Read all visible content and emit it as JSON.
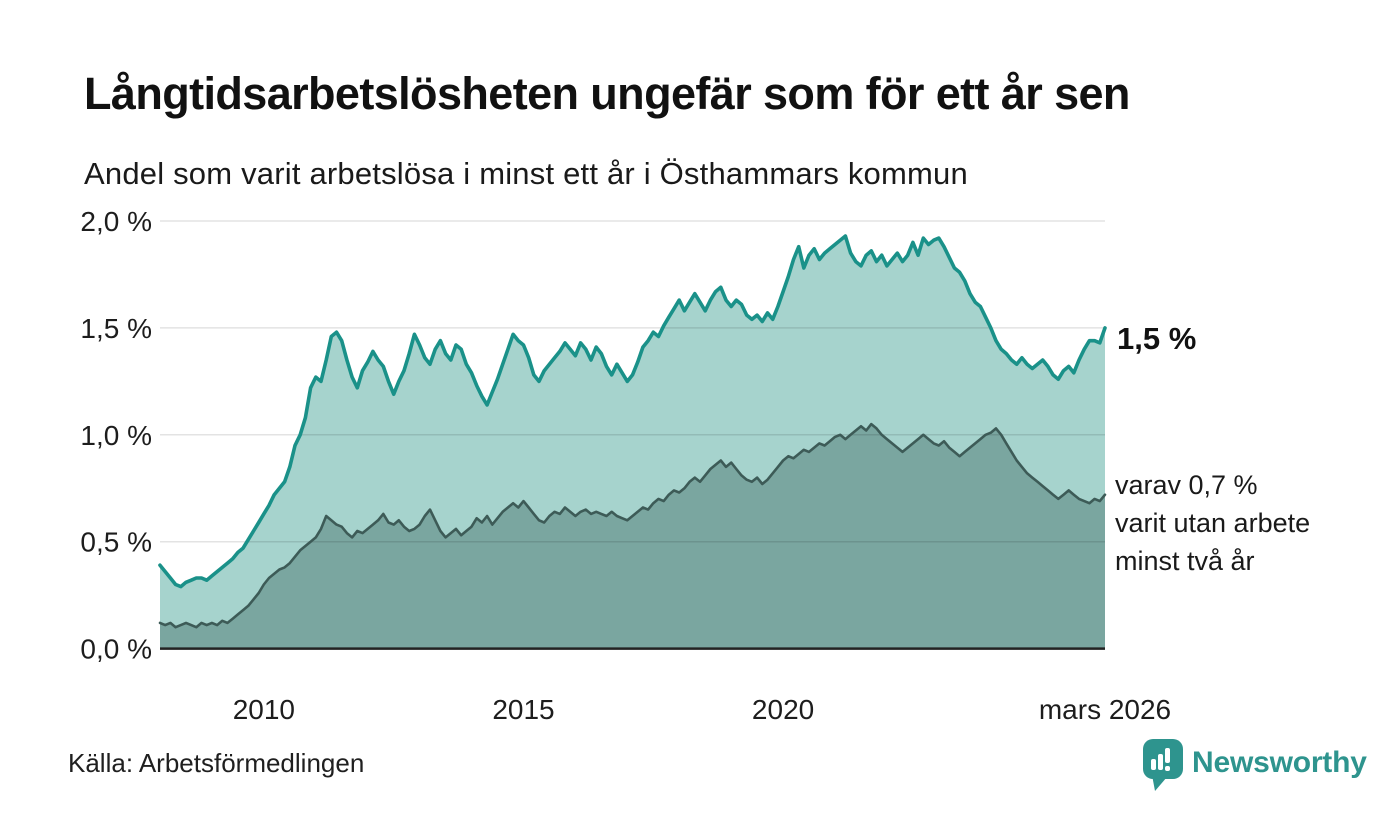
{
  "chart_data": {
    "type": "area",
    "title": "Långtidsarbetslösheten ungefär som för ett år sen",
    "subtitle": "Andel som varit arbetslösa i minst ett år i Östhammars kommun",
    "grid": true,
    "legend_position": "none",
    "grid_color": "rgba(0,0,0,0.11)",
    "axis_color": "#222222",
    "ylim": [
      0,
      2.0
    ],
    "y_axis": {
      "ticks": [
        0,
        0.5,
        1.0,
        1.5,
        2.0
      ],
      "labels": [
        "0,0 %",
        "0,5 %",
        "1,0 %",
        "1,5 %",
        "2,0 %"
      ]
    },
    "x_axis": {
      "start_year": 2008.0,
      "end_year": 2026.2,
      "step_years": 0.1,
      "ticks": [
        {
          "label": "2010",
          "year": 2010
        },
        {
          "label": "2015",
          "year": 2015
        },
        {
          "label": "2020",
          "year": 2020
        },
        {
          "label": "mars 2026",
          "year": 2026.2
        }
      ]
    },
    "series": [
      {
        "name": "arbetslösa i minst ett år",
        "line_color": "#1a9189",
        "fill_color": "#a6d3cd",
        "end_value": 1.5,
        "values": [
          0.39,
          0.36,
          0.33,
          0.3,
          0.29,
          0.31,
          0.32,
          0.33,
          0.33,
          0.32,
          0.34,
          0.36,
          0.38,
          0.4,
          0.42,
          0.45,
          0.47,
          0.51,
          0.55,
          0.59,
          0.63,
          0.67,
          0.72,
          0.75,
          0.78,
          0.85,
          0.95,
          1.0,
          1.08,
          1.22,
          1.27,
          1.25,
          1.35,
          1.46,
          1.48,
          1.44,
          1.35,
          1.27,
          1.22,
          1.3,
          1.34,
          1.39,
          1.35,
          1.32,
          1.25,
          1.19,
          1.25,
          1.3,
          1.38,
          1.47,
          1.42,
          1.36,
          1.33,
          1.4,
          1.44,
          1.38,
          1.35,
          1.42,
          1.4,
          1.33,
          1.29,
          1.23,
          1.18,
          1.14,
          1.2,
          1.26,
          1.33,
          1.4,
          1.47,
          1.44,
          1.42,
          1.36,
          1.28,
          1.25,
          1.3,
          1.33,
          1.36,
          1.39,
          1.43,
          1.4,
          1.37,
          1.43,
          1.4,
          1.35,
          1.41,
          1.38,
          1.32,
          1.28,
          1.33,
          1.29,
          1.25,
          1.28,
          1.34,
          1.41,
          1.44,
          1.48,
          1.46,
          1.51,
          1.55,
          1.59,
          1.63,
          1.58,
          1.62,
          1.66,
          1.62,
          1.58,
          1.63,
          1.67,
          1.69,
          1.63,
          1.6,
          1.63,
          1.61,
          1.56,
          1.54,
          1.56,
          1.53,
          1.57,
          1.54,
          1.6,
          1.67,
          1.74,
          1.82,
          1.88,
          1.78,
          1.84,
          1.87,
          1.82,
          1.85,
          1.87,
          1.89,
          1.91,
          1.93,
          1.85,
          1.81,
          1.79,
          1.84,
          1.86,
          1.81,
          1.84,
          1.79,
          1.82,
          1.85,
          1.81,
          1.84,
          1.9,
          1.84,
          1.92,
          1.89,
          1.91,
          1.92,
          1.88,
          1.83,
          1.78,
          1.76,
          1.72,
          1.66,
          1.62,
          1.6,
          1.55,
          1.5,
          1.44,
          1.4,
          1.38,
          1.35,
          1.33,
          1.36,
          1.33,
          1.31,
          1.33,
          1.35,
          1.32,
          1.28,
          1.26,
          1.3,
          1.32,
          1.29,
          1.35,
          1.4,
          1.44,
          1.44,
          1.43,
          1.5
        ]
      },
      {
        "name": "varit utan arbete minst två år",
        "line_color": "#3d5b57",
        "fill_color": "#7aa6a0",
        "end_value": 0.7,
        "values": [
          0.12,
          0.11,
          0.12,
          0.1,
          0.11,
          0.12,
          0.11,
          0.1,
          0.12,
          0.11,
          0.12,
          0.11,
          0.13,
          0.12,
          0.14,
          0.16,
          0.18,
          0.2,
          0.23,
          0.26,
          0.3,
          0.33,
          0.35,
          0.37,
          0.38,
          0.4,
          0.43,
          0.46,
          0.48,
          0.5,
          0.52,
          0.56,
          0.62,
          0.6,
          0.58,
          0.57,
          0.54,
          0.52,
          0.55,
          0.54,
          0.56,
          0.58,
          0.6,
          0.63,
          0.59,
          0.58,
          0.6,
          0.57,
          0.55,
          0.56,
          0.58,
          0.62,
          0.65,
          0.6,
          0.55,
          0.52,
          0.54,
          0.56,
          0.53,
          0.55,
          0.57,
          0.61,
          0.59,
          0.62,
          0.58,
          0.61,
          0.64,
          0.66,
          0.68,
          0.66,
          0.69,
          0.66,
          0.63,
          0.6,
          0.59,
          0.62,
          0.64,
          0.63,
          0.66,
          0.64,
          0.62,
          0.64,
          0.65,
          0.63,
          0.64,
          0.63,
          0.62,
          0.64,
          0.62,
          0.61,
          0.6,
          0.62,
          0.64,
          0.66,
          0.65,
          0.68,
          0.7,
          0.69,
          0.72,
          0.74,
          0.73,
          0.75,
          0.78,
          0.8,
          0.78,
          0.81,
          0.84,
          0.86,
          0.88,
          0.85,
          0.87,
          0.84,
          0.81,
          0.79,
          0.78,
          0.8,
          0.77,
          0.79,
          0.82,
          0.85,
          0.88,
          0.9,
          0.89,
          0.91,
          0.93,
          0.92,
          0.94,
          0.96,
          0.95,
          0.97,
          0.99,
          1.0,
          0.98,
          1.0,
          1.02,
          1.04,
          1.02,
          1.05,
          1.03,
          1.0,
          0.98,
          0.96,
          0.94,
          0.92,
          0.94,
          0.96,
          0.98,
          1.0,
          0.98,
          0.96,
          0.95,
          0.97,
          0.94,
          0.92,
          0.9,
          0.92,
          0.94,
          0.96,
          0.98,
          1.0,
          1.01,
          1.03,
          1.0,
          0.96,
          0.92,
          0.88,
          0.85,
          0.82,
          0.8,
          0.78,
          0.76,
          0.74,
          0.72,
          0.7,
          0.72,
          0.74,
          0.72,
          0.7,
          0.69,
          0.68,
          0.7,
          0.69,
          0.72
        ]
      }
    ]
  },
  "annotations": {
    "end_value_label": "1,5 %",
    "secondary_lines": [
      "varav 0,7 %",
      "varit utan arbete",
      "minst två år"
    ]
  },
  "footer": {
    "source": "Källa: Arbetsförmedlingen",
    "brand": "Newsworthy",
    "brand_color": "#2e948e"
  }
}
